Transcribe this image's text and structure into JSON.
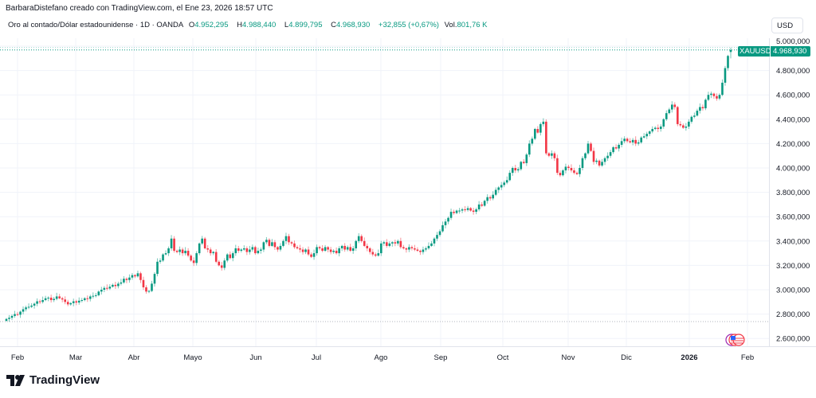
{
  "header": {
    "credit": "BarbaraDistefano creado con TradingView.com, el Ene 23, 2026 18:57 UTC",
    "symbol_desc": "Oro al contado/Dólar estadounidense · 1D · OANDA",
    "o_label": "O",
    "o": "4.952,295",
    "h_label": "H",
    "h": "4.988,440",
    "l_label": "L",
    "l": "4.899,795",
    "c_label": "C",
    "c": "4.968,930",
    "change": "+32,855 (+0,67%)",
    "vol_label": "Vol.",
    "vol": "801,76 K"
  },
  "currency": "USD",
  "price_tag": {
    "symbol": "XAUUSD",
    "price": "4.968,930"
  },
  "branding": "TradingView",
  "colors": {
    "up": "#089981",
    "down": "#f23645",
    "grid": "#f0f3fa",
    "text": "#131722"
  },
  "chart_data": {
    "type": "candlestick",
    "title": "Oro al contado/Dólar estadounidense · 1D · OANDA",
    "x_ticks": [
      "Feb",
      "Mar",
      "Abr",
      "Mayo",
      "Jun",
      "Jul",
      "Ago",
      "Sep",
      "Oct",
      "Nov",
      "Dic",
      "2026",
      "Feb"
    ],
    "y_ticks": [
      "5.000,000",
      "4.800,000",
      "4.600,000",
      "4.400,000",
      "4.200,000",
      "4.000,000",
      "3.800,000",
      "3.600,000",
      "3.400,000",
      "3.200,000",
      "3.000,000",
      "2.800,000",
      "2.600,000"
    ],
    "y_tick_values": [
      5000,
      4800,
      4600,
      4400,
      4200,
      4000,
      3800,
      3600,
      3400,
      3200,
      3000,
      2800,
      2600
    ],
    "ylim": [
      2560,
      5060
    ],
    "grid": true,
    "last_candle": {
      "open": 4952.295,
      "high": 4988.44,
      "low": 4899.795,
      "close": 4968.93
    },
    "daily_closes": [
      2760,
      2770,
      2785,
      2800,
      2795,
      2820,
      2840,
      2855,
      2860,
      2870,
      2885,
      2905,
      2900,
      2915,
      2930,
      2935,
      2915,
      2925,
      2945,
      2930,
      2920,
      2900,
      2880,
      2890,
      2905,
      2895,
      2910,
      2915,
      2930,
      2925,
      2945,
      2950,
      2955,
      2985,
      3000,
      3015,
      3010,
      3025,
      3040,
      3030,
      3050,
      3060,
      3090,
      3080,
      3100,
      3120,
      3110,
      3135,
      3080,
      3020,
      2985,
      2990,
      3050,
      3130,
      3230,
      3240,
      3290,
      3300,
      3340,
      3420,
      3320,
      3310,
      3330,
      3300,
      3320,
      3280,
      3240,
      3220,
      3300,
      3380,
      3420,
      3340,
      3330,
      3300,
      3310,
      3230,
      3200,
      3180,
      3240,
      3290,
      3260,
      3300,
      3340,
      3320,
      3330,
      3340,
      3310,
      3330,
      3350,
      3300,
      3320,
      3330,
      3390,
      3410,
      3360,
      3390,
      3350,
      3330,
      3360,
      3400,
      3440,
      3390,
      3380,
      3350,
      3340,
      3330,
      3310,
      3330,
      3290,
      3270,
      3300,
      3350,
      3340,
      3320,
      3350,
      3330,
      3310,
      3320,
      3300,
      3340,
      3360,
      3330,
      3350,
      3320,
      3340,
      3400,
      3440,
      3400,
      3360,
      3340,
      3310,
      3290,
      3280,
      3300,
      3380,
      3390,
      3360,
      3380,
      3390,
      3380,
      3400,
      3350,
      3340,
      3330,
      3350,
      3340,
      3330,
      3320,
      3310,
      3330,
      3340,
      3360,
      3380,
      3420,
      3450,
      3480,
      3530,
      3560,
      3590,
      3640,
      3630,
      3650,
      3650,
      3660,
      3655,
      3670,
      3650,
      3640,
      3660,
      3700,
      3690,
      3730,
      3760,
      3750,
      3780,
      3820,
      3840,
      3860,
      3880,
      3900,
      3960,
      4000,
      3980,
      3990,
      4050,
      4040,
      4110,
      4200,
      4240,
      4320,
      4290,
      4360,
      4380,
      4120,
      4100,
      4120,
      4080,
      3960,
      3940,
      3980,
      4010,
      4000,
      3980,
      3960,
      3950,
      4000,
      4080,
      4120,
      4200,
      4140,
      4050,
      4060,
      4020,
      4050,
      4080,
      4100,
      4130,
      4170,
      4160,
      4190,
      4220,
      4240,
      4220,
      4210,
      4230,
      4200,
      4210,
      4250,
      4260,
      4280,
      4300,
      4320,
      4330,
      4320,
      4340,
      4400,
      4450,
      4480,
      4520,
      4500,
      4360,
      4350,
      4330,
      4340,
      4380,
      4420,
      4430,
      4470,
      4500,
      4490,
      4560,
      4600,
      4610,
      4590,
      4570,
      4600,
      4700,
      4820,
      4920,
      4968.93
    ]
  }
}
